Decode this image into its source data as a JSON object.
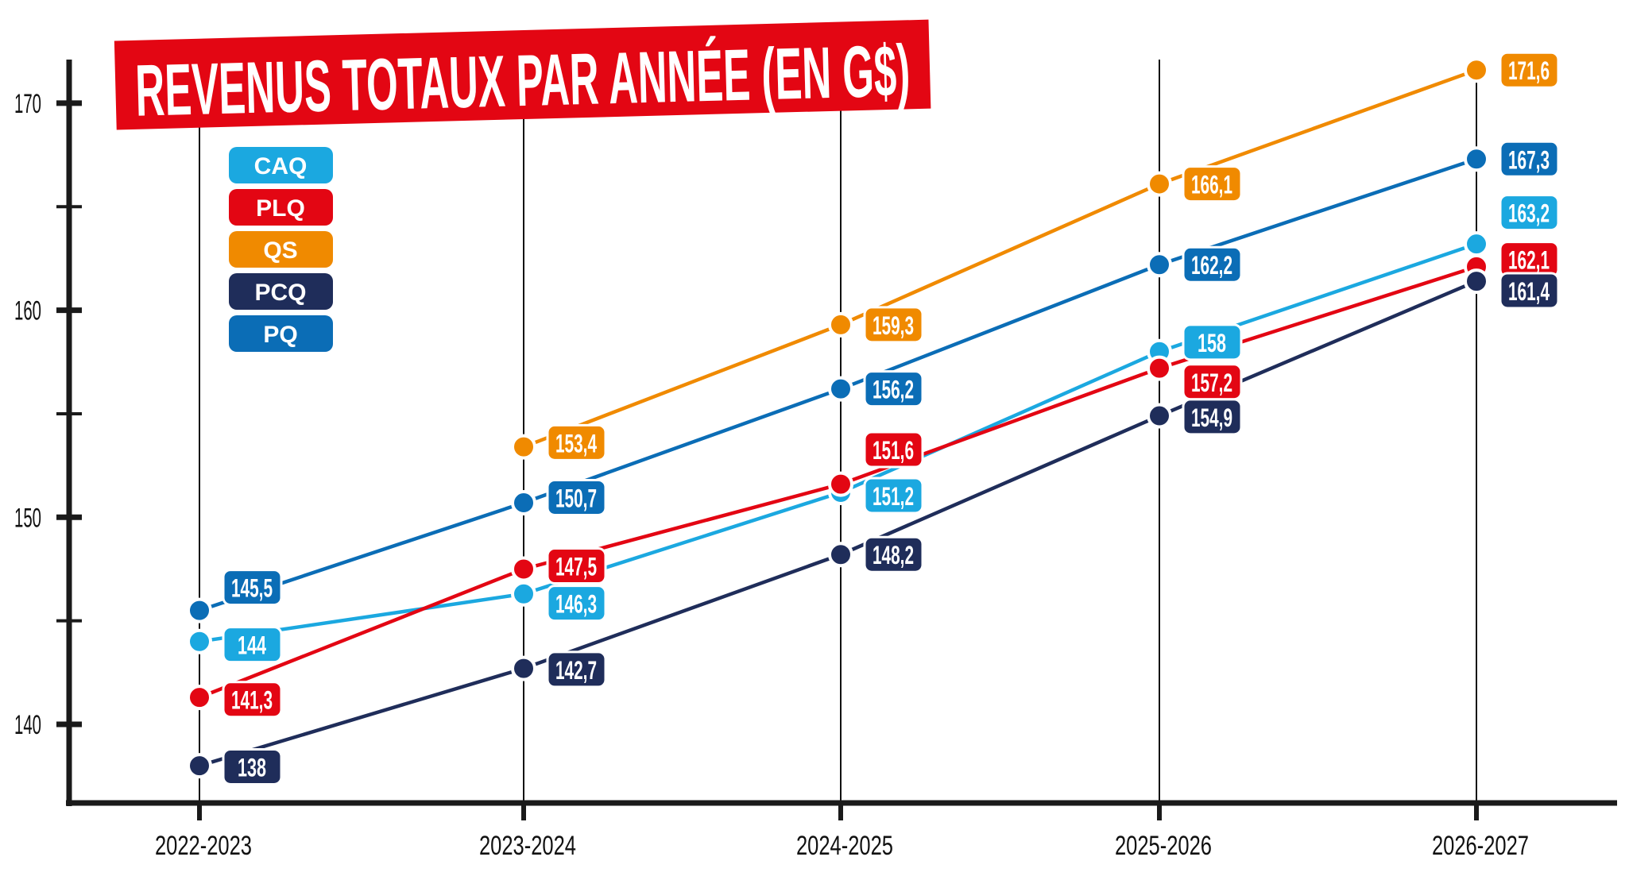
{
  "chart_data": {
    "type": "line",
    "title": "REVENUS TOTAUX PAR ANNÉE (EN G$)",
    "xlabel": "",
    "ylabel": "",
    "categories": [
      "2022-2023",
      "2023-2024",
      "2024-2025",
      "2025-2026",
      "2026-2027"
    ],
    "ylim": [
      136,
      172
    ],
    "yticks": [
      140,
      150,
      160,
      170
    ],
    "yticks_minor": [
      145,
      155,
      165
    ],
    "grid": "vertical lines at each category",
    "legend_placement": "top-left",
    "series": [
      {
        "name": "CAQ",
        "color": "#1ba8e0",
        "values": [
          144,
          146.3,
          151.2,
          158,
          163.2
        ],
        "labels": [
          "144",
          "146,3",
          "151,2",
          "158",
          "163,2"
        ]
      },
      {
        "name": "PLQ",
        "color": "#e30613",
        "values": [
          141.3,
          147.5,
          151.6,
          157.2,
          162.1
        ],
        "labels": [
          "141,3",
          "147,5",
          "151,6",
          "157,2",
          "162,1"
        ]
      },
      {
        "name": "QS",
        "color": "#f08a00",
        "values": [
          null,
          153.4,
          159.3,
          166.1,
          171.6
        ],
        "labels": [
          null,
          "153,4",
          "159,3",
          "166,1",
          "171,6"
        ]
      },
      {
        "name": "PCQ",
        "color": "#1f2d5a",
        "values": [
          138,
          142.7,
          148.2,
          154.9,
          161.4
        ],
        "labels": [
          "138",
          "142,7",
          "148,2",
          "154,9",
          "161,4"
        ]
      },
      {
        "name": "PQ",
        "color": "#0b6db6",
        "values": [
          145.5,
          150.7,
          156.2,
          162.2,
          167.3
        ],
        "labels": [
          "145,5",
          "150,7",
          "156,2",
          "162,2",
          "167,3"
        ]
      }
    ]
  },
  "colors": {
    "title_banner": "#e30613",
    "axis": "#1a1a1a"
  }
}
